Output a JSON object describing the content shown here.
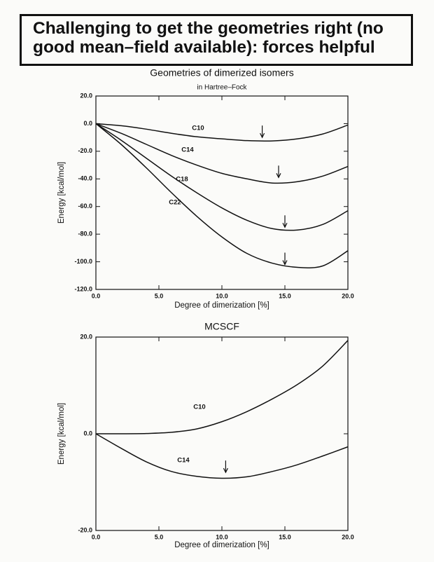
{
  "header": {
    "title": "Challenging to get the geometries right (no good mean–field available): forces helpful"
  },
  "chart_data": [
    {
      "type": "line",
      "title": "Geometries of dimerized isomers",
      "subtitle": "in Hartree–Fock",
      "x_label": "Degree of dimerization [%]",
      "y_label": "Energy [kcal/mol]",
      "x": [
        0,
        2,
        4,
        6,
        8,
        10,
        12,
        14,
        16,
        18,
        20
      ],
      "series": [
        {
          "name": "C10",
          "color": "#111111",
          "values": [
            0,
            -1.5,
            -4,
            -7,
            -9.5,
            -11,
            -12.3,
            -12.5,
            -11,
            -7.5,
            -1
          ]
        },
        {
          "name": "C14",
          "color": "#111111",
          "values": [
            0,
            -7,
            -15,
            -23,
            -30,
            -36,
            -40,
            -43,
            -42,
            -38,
            -31
          ]
        },
        {
          "name": "C18",
          "color": "#111111",
          "values": [
            0,
            -12,
            -25,
            -38,
            -50,
            -61,
            -70,
            -76,
            -77,
            -73,
            -63
          ]
        },
        {
          "name": "C22",
          "color": "#111111",
          "values": [
            0,
            -15,
            -32,
            -50,
            -67,
            -82,
            -94,
            -101,
            -104,
            -103,
            -92
          ]
        }
      ],
      "arrows": [
        {
          "x": 13.2,
          "y": -10
        },
        {
          "x": 14.5,
          "y": -39
        },
        {
          "x": 15,
          "y": -75
        },
        {
          "x": 15,
          "y": -102
        }
      ],
      "xlim": [
        0,
        20
      ],
      "xticks": [
        {
          "value": 0,
          "label": "0.0"
        },
        {
          "value": 5,
          "label": "5.0"
        },
        {
          "value": 10,
          "label": "10.0"
        },
        {
          "value": 15,
          "label": "15.0"
        },
        {
          "value": 20,
          "label": "20.0"
        }
      ],
      "ylim": [
        -120,
        20
      ],
      "yticks": [
        {
          "value": 20,
          "label": "20.0"
        },
        {
          "value": 0,
          "label": "0.0"
        },
        {
          "value": -20,
          "label": "-20.0"
        },
        {
          "value": -40,
          "label": "-40.0"
        },
        {
          "value": -60,
          "label": "-60.0"
        },
        {
          "value": -80,
          "label": "-80.0"
        },
        {
          "value": -100,
          "label": "-100.0"
        },
        {
          "value": -120,
          "label": "-120.0"
        }
      ]
    },
    {
      "type": "line",
      "title": "MCSCF",
      "x_label": "Degree of dimerization [%]",
      "y_label": "Energy [kcal/mol]",
      "x": [
        0,
        2,
        4,
        6,
        8,
        10,
        12,
        14,
        16,
        18,
        20
      ],
      "series": [
        {
          "name": "C10",
          "color": "#111111",
          "values": [
            0,
            0,
            0.05,
            0.3,
            1,
            2.5,
            4.6,
            7.2,
            10.2,
            14,
            19.3
          ]
        },
        {
          "name": "C14",
          "color": "#111111",
          "values": [
            0,
            -3,
            -5.8,
            -7.8,
            -8.8,
            -9.2,
            -8.9,
            -7.8,
            -6.4,
            -4.6,
            -2.7
          ]
        }
      ],
      "arrows": [
        {
          "x": 10.3,
          "y": -8
        }
      ],
      "xlim": [
        0,
        20
      ],
      "xticks": [
        {
          "value": 0,
          "label": "0.0"
        },
        {
          "value": 5,
          "label": "5.0"
        },
        {
          "value": 10,
          "label": "10.0"
        },
        {
          "value": 15,
          "label": "15.0"
        },
        {
          "value": 20,
          "label": "20.0"
        }
      ],
      "ylim": [
        -20,
        20
      ],
      "yticks": [
        {
          "value": 20,
          "label": "20.0"
        },
        {
          "value": 0,
          "label": "0.0"
        },
        {
          "value": -20,
          "label": "-20.0"
        }
      ]
    }
  ]
}
